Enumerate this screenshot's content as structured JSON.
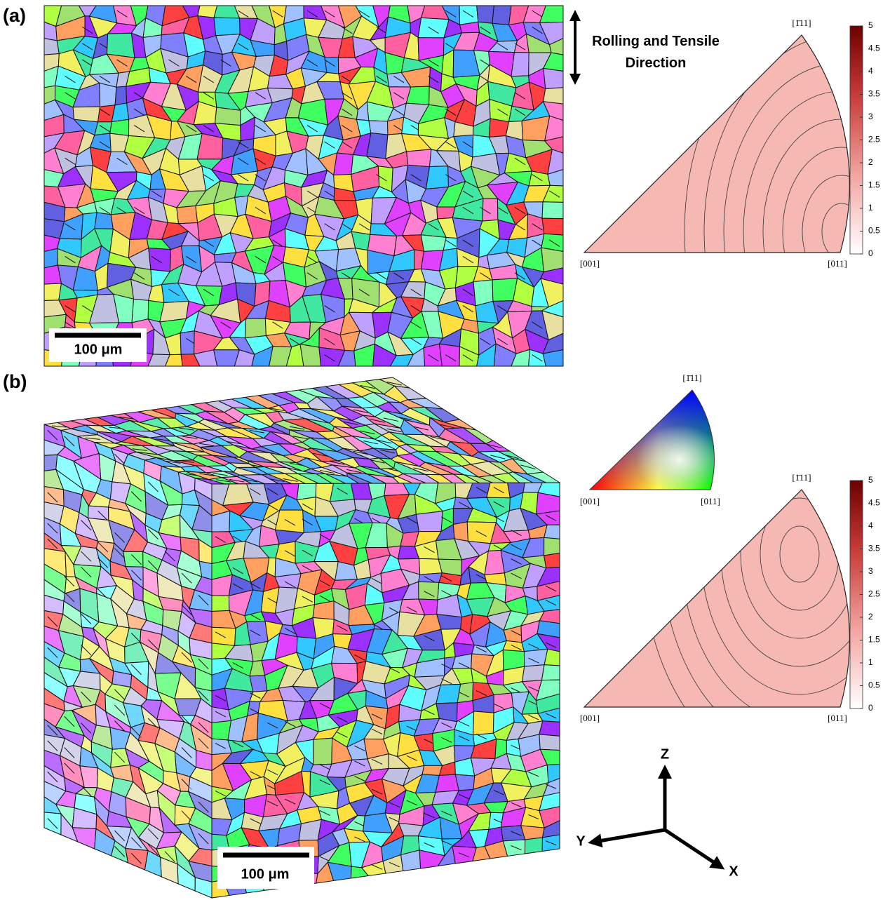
{
  "panels": [
    {
      "label": "(a)",
      "scale_bar": "100 μm",
      "annotation": "Rolling and Tensile Direction",
      "ipf_density": {
        "vertex_labels": [
          "[1̄11]",
          "[001]",
          "[011]"
        ],
        "colorbar": {
          "lim": [
            0,
            5
          ],
          "ticks": [
            0,
            0.5,
            1,
            1.5,
            2,
            2.5,
            3,
            3.5,
            4,
            4.5,
            5
          ]
        }
      }
    },
    {
      "label": "(b)",
      "scale_bar": "100 μm",
      "ipf_key": {
        "vertex_labels": [
          "[1̄11]",
          "[001]",
          "[011]"
        ]
      },
      "ipf_density": {
        "vertex_labels": [
          "[1̄11]",
          "[001]",
          "[011]"
        ],
        "colorbar": {
          "lim": [
            0,
            5
          ],
          "ticks": [
            0,
            0.5,
            1,
            1.5,
            2,
            2.5,
            3,
            3.5,
            4,
            4.5,
            5
          ]
        }
      },
      "axes": [
        "Z",
        "Y",
        "X"
      ]
    }
  ]
}
